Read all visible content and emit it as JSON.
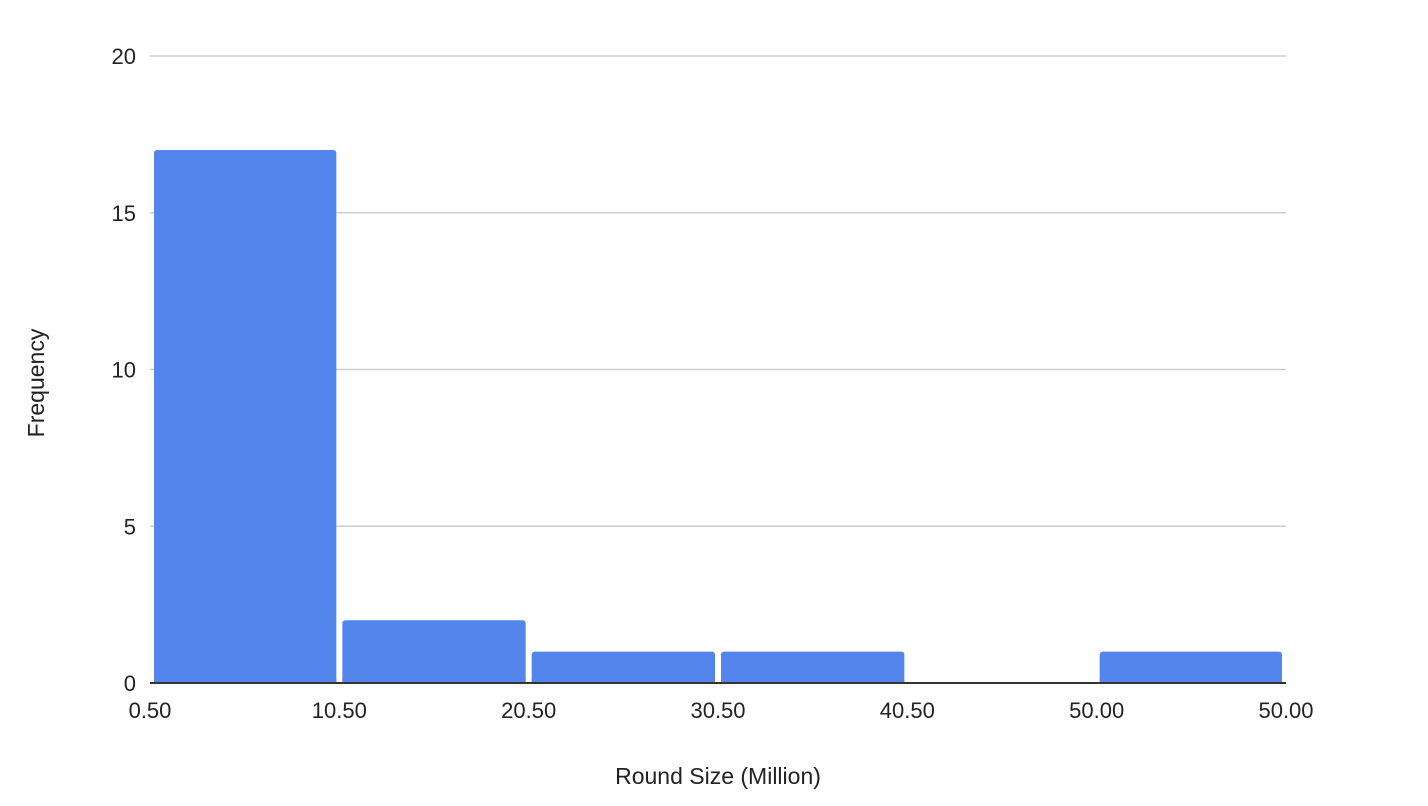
{
  "chart_data": {
    "type": "bar",
    "subtype": "histogram",
    "title": "",
    "xlabel": "Round Size (Million)",
    "ylabel": "Frequency",
    "ylim": [
      0,
      20
    ],
    "yticks": [
      "0",
      "5",
      "10",
      "15",
      "20"
    ],
    "xtick_labels": [
      "0.50",
      "10.50",
      "20.50",
      "30.50",
      "40.50",
      "50.00",
      "50.00"
    ],
    "bins": [
      {
        "range": "0.50–10.50",
        "value": 17
      },
      {
        "range": "10.50–20.50",
        "value": 2
      },
      {
        "range": "20.50–30.50",
        "value": 1
      },
      {
        "range": "30.50–40.50",
        "value": 1
      },
      {
        "range": "40.50–50.00",
        "value": 0
      },
      {
        "range": "50.00–50.00",
        "value": 1
      }
    ],
    "grid": true,
    "legend": "none",
    "colors": {
      "bar": "#5385ED",
      "grid": "#CCCCCC",
      "axis": "#333333"
    }
  }
}
